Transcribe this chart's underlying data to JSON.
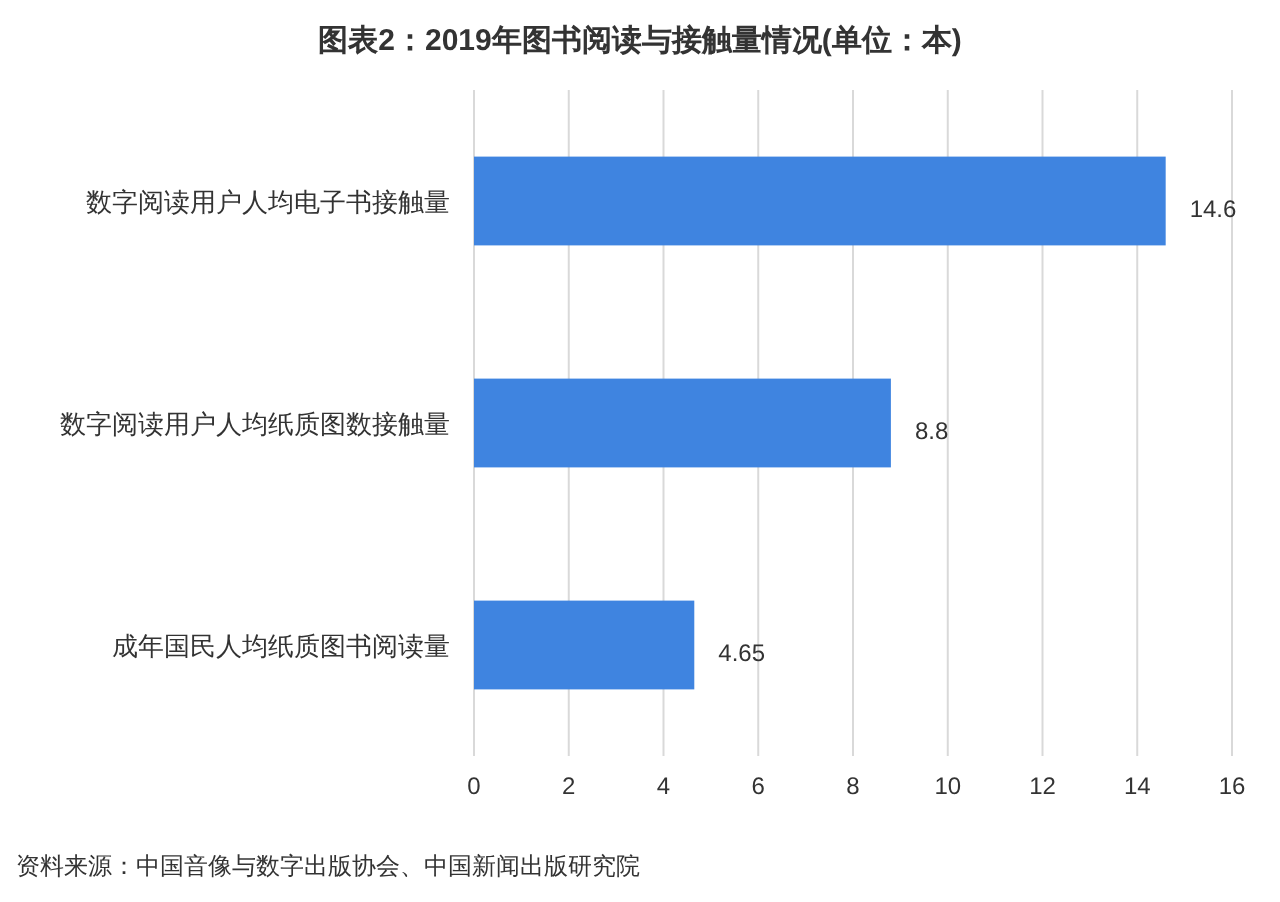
{
  "chart_data": {
    "type": "bar",
    "orientation": "horizontal",
    "title": "图表2：2019年图书阅读与接触量情况(单位：本)",
    "categories": [
      "数字阅读用户人均电子书接触量",
      "数字阅读用户人均纸质图数接触量",
      "成年国民人均纸质图书阅读量"
    ],
    "values": [
      14.6,
      8.8,
      4.65
    ],
    "color": "#3f84e0",
    "xlim": [
      0,
      16
    ],
    "xticks": [
      0,
      2,
      4,
      6,
      8,
      10,
      12,
      14,
      16
    ],
    "grid": "x",
    "data_labels": true,
    "annotations": [
      "资料来源：中国音像与数字出版协会、中国新闻出版研究院"
    ]
  }
}
